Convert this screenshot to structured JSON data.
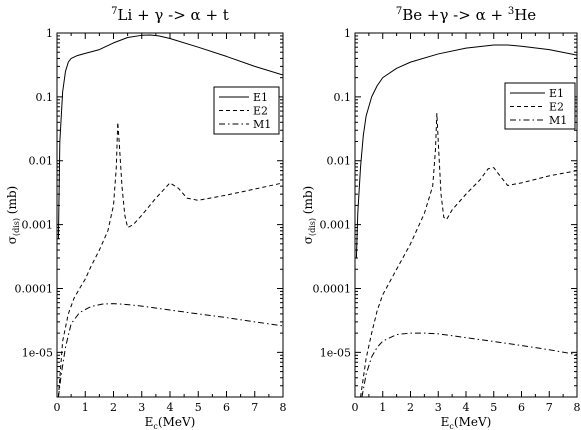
{
  "chart_data": [
    {
      "type": "line",
      "title": {
        "pre": "7",
        "main": "Li + γ -> α + t",
        "post": ""
      },
      "xlabel": {
        "main": "E",
        "sub": "c",
        "rest": "(MeV)"
      },
      "ylabel": {
        "main": "σ",
        "sub": "(dis)",
        "rest": "(mb)"
      },
      "xlim": [
        0,
        8
      ],
      "ylim": [
        2e-06,
        1
      ],
      "yscale": "log",
      "xticks": [
        0,
        1,
        2,
        3,
        4,
        5,
        6,
        7,
        8
      ],
      "xtick_labels": [
        "0",
        "1",
        "2",
        "3",
        "4",
        "5",
        "6",
        "7",
        "8"
      ],
      "yticks": [
        1,
        0.1,
        0.01,
        0.001,
        0.0001,
        1e-05
      ],
      "ytick_labels": [
        "1",
        "0.1",
        "0.01",
        "0.001",
        "0.0001",
        "1e-05"
      ],
      "legend_position": "upper-right",
      "series": [
        {
          "name": "E1",
          "style": "solid",
          "x": [
            0.05,
            0.1,
            0.2,
            0.3,
            0.4,
            0.5,
            0.7,
            1.0,
            1.5,
            2.0,
            2.5,
            3.0,
            3.3,
            3.6,
            4.0,
            5.0,
            6.0,
            7.0,
            8.0
          ],
          "y": [
            0.0006,
            0.02,
            0.12,
            0.25,
            0.35,
            0.4,
            0.44,
            0.48,
            0.55,
            0.7,
            0.85,
            0.92,
            0.93,
            0.9,
            0.82,
            0.6,
            0.43,
            0.3,
            0.22
          ]
        },
        {
          "name": "E2",
          "style": "dashed",
          "x": [
            0.05,
            0.2,
            0.4,
            0.6,
            0.8,
            1.0,
            1.2,
            1.5,
            1.8,
            2.0,
            2.1,
            2.15,
            2.2,
            2.3,
            2.4,
            2.5,
            2.7,
            3.0,
            3.5,
            4.0,
            4.3,
            4.6,
            5.0,
            6.0,
            7.0,
            8.0
          ],
          "y": [
            2e-06,
            1.5e-05,
            4e-05,
            7e-05,
            0.0001,
            0.00014,
            0.00022,
            0.0004,
            0.0008,
            0.002,
            0.008,
            0.04,
            0.02,
            0.004,
            0.0014,
            0.0009,
            0.001,
            0.0014,
            0.0026,
            0.0045,
            0.0037,
            0.0026,
            0.0024,
            0.0029,
            0.0036,
            0.0045
          ]
        },
        {
          "name": "M1",
          "style": "dashdot",
          "x": [
            0.05,
            0.15,
            0.3,
            0.5,
            0.8,
            1.2,
            1.6,
            2.0,
            2.5,
            3.0,
            4.0,
            5.0,
            6.0,
            7.0,
            8.0
          ],
          "y": [
            2e-06,
            4.5e-06,
            1.2e-05,
            2.8e-05,
            4.2e-05,
            5.2e-05,
            5.7e-05,
            5.8e-05,
            5.6e-05,
            5.3e-05,
            4.6e-05,
            4e-05,
            3.5e-05,
            3e-05,
            2.6e-05
          ]
        }
      ]
    },
    {
      "type": "line",
      "title": {
        "pre": "7",
        "main": "Be +γ -> α + ",
        "sup2": "3",
        "post": "He"
      },
      "xlabel": {
        "main": "E",
        "sub": "c",
        "rest": "(MeV)"
      },
      "ylabel": {
        "main": "σ",
        "sub": "(dis)",
        "rest": "(mb)"
      },
      "xlim": [
        0,
        8
      ],
      "ylim": [
        2e-06,
        1
      ],
      "yscale": "log",
      "xticks": [
        0,
        1,
        2,
        3,
        4,
        5,
        6,
        7,
        8
      ],
      "xtick_labels": [
        "0",
        "1",
        "2",
        "3",
        "4",
        "5",
        "6",
        "7",
        "8"
      ],
      "yticks": [
        1,
        0.1,
        0.01,
        0.001,
        0.0001,
        1e-05
      ],
      "ytick_labels": [
        "1",
        "0.1",
        "0.01",
        "0.001",
        "0.0001",
        "1e-05"
      ],
      "legend_position": "upper-right",
      "series": [
        {
          "name": "E1",
          "style": "solid",
          "x": [
            0.05,
            0.1,
            0.2,
            0.3,
            0.4,
            0.6,
            0.8,
            1.0,
            1.5,
            2.0,
            3.0,
            4.0,
            5.0,
            5.5,
            6.0,
            7.0,
            8.0
          ],
          "y": [
            0.0003,
            0.0015,
            0.008,
            0.025,
            0.05,
            0.1,
            0.15,
            0.2,
            0.28,
            0.35,
            0.47,
            0.58,
            0.65,
            0.65,
            0.62,
            0.55,
            0.45
          ]
        },
        {
          "name": "E2",
          "style": "dashed",
          "x": [
            0.2,
            0.4,
            0.6,
            0.8,
            1.0,
            1.5,
            2.0,
            2.5,
            2.8,
            2.9,
            2.95,
            3.0,
            3.1,
            3.2,
            3.3,
            3.5,
            4.0,
            4.5,
            4.8,
            5.0,
            5.2,
            5.5,
            6.0,
            7.0,
            8.0
          ],
          "y": [
            2e-06,
            8e-06,
            2e-05,
            4.5e-05,
            8e-05,
            0.0002,
            0.0005,
            0.0015,
            0.004,
            0.015,
            0.055,
            0.02,
            0.003,
            0.0013,
            0.0012,
            0.0017,
            0.003,
            0.005,
            0.0075,
            0.0078,
            0.006,
            0.0041,
            0.0045,
            0.0058,
            0.007
          ]
        },
        {
          "name": "M1",
          "style": "dashdot",
          "x": [
            0.25,
            0.4,
            0.6,
            0.8,
            1.0,
            1.5,
            2.0,
            2.5,
            3.0,
            4.0,
            5.0,
            6.0,
            7.0,
            8.0
          ],
          "y": [
            2e-06,
            4.5e-06,
            8.5e-06,
            1.2e-05,
            1.5e-05,
            1.9e-05,
            2e-05,
            2e-05,
            1.95e-05,
            1.7e-05,
            1.48e-05,
            1.28e-05,
            1.1e-05,
            9.2e-06
          ]
        }
      ]
    }
  ]
}
